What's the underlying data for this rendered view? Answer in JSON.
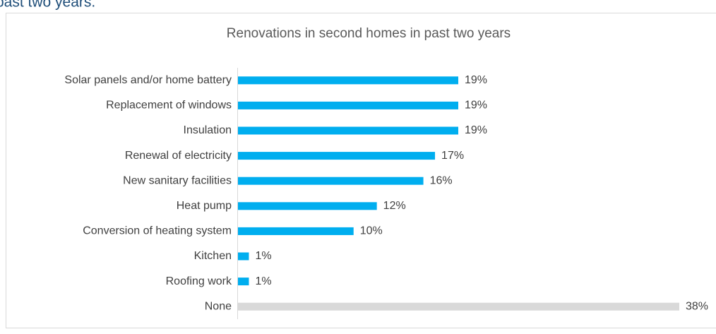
{
  "heading": "past two years.",
  "chart_data": {
    "type": "bar",
    "orientation": "horizontal",
    "title": "Renovations in second homes in past two years",
    "categories": [
      "Solar panels and/or home battery",
      "Replacement of windows",
      "Insulation",
      "Renewal of electricity",
      "New sanitary facilities",
      "Heat pump",
      "Conversion of heating system",
      "Kitchen",
      "Roofing work",
      "None"
    ],
    "values": [
      19,
      19,
      19,
      17,
      16,
      12,
      10,
      1,
      1,
      38
    ],
    "value_labels": [
      "19%",
      "19%",
      "19%",
      "17%",
      "16%",
      "12%",
      "10%",
      "1%",
      "1%",
      "38%"
    ],
    "colors": [
      "#00aeef",
      "#00aeef",
      "#00aeef",
      "#00aeef",
      "#00aeef",
      "#00aeef",
      "#00aeef",
      "#00aeef",
      "#00aeef",
      "#d9d9d9"
    ]
  }
}
